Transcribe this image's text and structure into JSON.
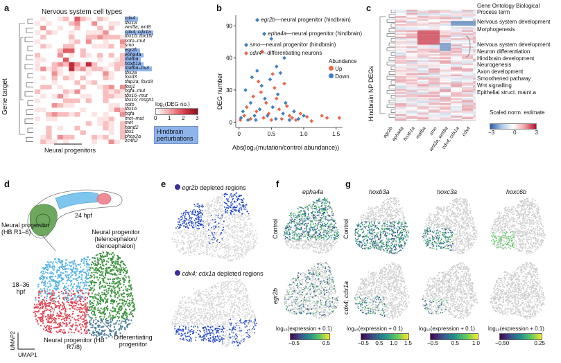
{
  "panel_letters": [
    "a",
    "b",
    "c",
    "d",
    "e",
    "f",
    "g"
  ],
  "a": {
    "title": "Nervous system cell types",
    "ylabel": "Gene target",
    "xlabel": "Neural progenitors",
    "genes": [
      "cdx4",
      "tbx1a",
      "wnt3a; wnt8",
      "cdx4; cdx1a",
      "tbx16; tbx16l",
      "noto–mut",
      "smo",
      "egr2b",
      "epha4a",
      "mafba",
      "hoxb1a",
      "mafba–mut",
      "tbx2a",
      "foxd3",
      "tfap2a; foxd3",
      "foxj1",
      "hgfa–mut",
      "tbx16–mut",
      "tbx16; msgn1",
      "noto",
      "tbx16",
      "hgfa",
      "met–mut",
      "met",
      "hand2",
      "tbx1",
      "phox2a",
      "zc4h2"
    ],
    "highlighted_rows": [
      0,
      3,
      7,
      8,
      9,
      10,
      11
    ],
    "legend_title": "log₂(DEG no.)",
    "legend_ticks": [
      "0",
      "1",
      "2",
      "3"
    ],
    "hindbrain_label": "Hindbrain perturbations"
  },
  "b": {
    "ylabel": "DEG number",
    "xlabel": "Abs(log₂(mutation/control abundance))",
    "annotations": [
      {
        "gene": "egr2b",
        "text": "—neural progenitor (hindbrain)"
      },
      {
        "gene": "epha4a",
        "text": "—neural progenitor (hindbrain)"
      },
      {
        "gene": "smo",
        "text": "—neural progenitor (hindbrain)"
      },
      {
        "gene": "cdx4",
        "text": "—differentiating neurons"
      }
    ],
    "legend_title": "Abundance",
    "legend_items": [
      {
        "label": "Up",
        "color": "#e8694a"
      },
      {
        "label": "Down",
        "color": "#3f7fc1"
      }
    ]
  },
  "c": {
    "ylabel": "Hindbrain NP DEGs",
    "go_header": "Gene Ontology Biological Process term",
    "go_terms_top": [
      "Nervous system development",
      "Morphogenesis"
    ],
    "go_terms_bottom": [
      "Nervous system development",
      "Neuron differentiation",
      "Hindbrain development",
      "Neurogenesis",
      "Axon development",
      "Smoothened pathway",
      "Wnt signalling",
      "Epithelial struct. maint.a"
    ],
    "columns": [
      "egr2b",
      "epha4a",
      "hoxb1a",
      "mafba",
      "smo",
      "wnt3a; wnt8a",
      "cdx4; cdx1a",
      "cdx4"
    ],
    "legend_title": "Scaled norm. estimate",
    "legend_ticks": [
      "−3",
      "0",
      "3"
    ]
  },
  "d": {
    "stage": "24 hpf",
    "time_range": "18–36 hpf",
    "labels": [
      "Neural progenitor (HB R1–6)",
      "Neural progenitor (telencephalon/ diencephalon)",
      "Neural progenitor (HB R7/8)",
      "Differentiating progenitor"
    ],
    "axis_x": "UMAP1",
    "axis_y": "UMAP2",
    "colors": {
      "hb16": "#55b3e6",
      "tel": "#3e9540",
      "hb78": "#e04856",
      "diff": "#4f7f9a"
    }
  },
  "e": {
    "captions": [
      {
        "gene": "egr2b",
        "text": " depleted regions"
      },
      {
        "gene": "cdx4; cdx1a",
        "text": " depleted regions"
      }
    ],
    "dot_color": "#2b2fa8"
  },
  "f": {
    "gene": "epha4a",
    "row_labels": [
      "Control",
      "egr2b"
    ],
    "scale_label": "log₁₀(expression + 0.1)",
    "ticks": [
      "−0.5",
      "0.5"
    ]
  },
  "g": {
    "genes": [
      "hoxb3a",
      "hoxc3a",
      "hoxc6b"
    ],
    "row_labels": [
      "Control",
      "cdx4; cdx1a"
    ],
    "scale_label": "log₁₀(expression + 0.1)",
    "ticks1": [
      "−0.5",
      "0.5",
      "1.0",
      "1.5"
    ],
    "ticks2": [
      "−0.5",
      "0.5",
      "1.0"
    ],
    "ticks3": [
      "−0.50",
      "0.25"
    ]
  }
}
